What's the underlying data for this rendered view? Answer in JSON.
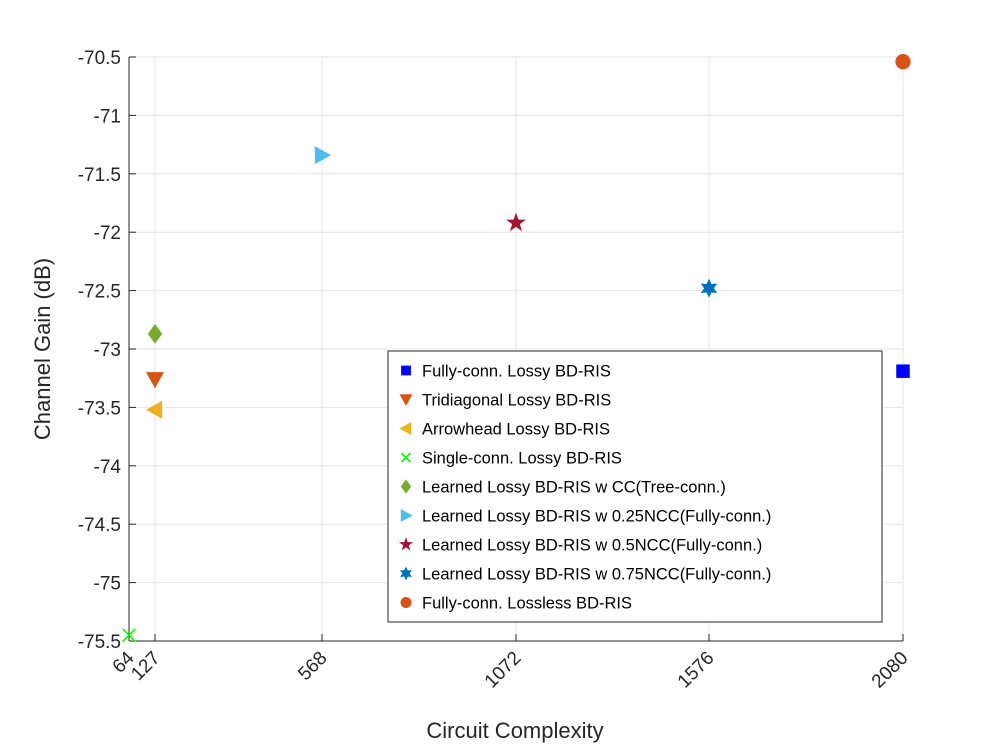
{
  "chart_data": {
    "type": "scatter",
    "title": "",
    "xlabel": "Circuit Complexity",
    "ylabel": "Channel Gain (dB)",
    "xlim": [
      40,
      2080
    ],
    "ylim": [
      -75.5,
      -70.5
    ],
    "grid": true,
    "legend_position": "bottom-right",
    "x_ticks": [
      64,
      127,
      568,
      1072,
      1576,
      2080
    ],
    "x_tick_labels": [
      "64",
      "127",
      "568",
      "1072",
      "1576",
      "2080"
    ],
    "y_ticks": [
      -70.5,
      -71,
      -71.5,
      -72,
      -72.5,
      -73,
      -73.5,
      -74,
      -74.5,
      -75,
      -75.5
    ],
    "y_tick_labels": [
      "-70.5",
      "-71",
      "-71.5",
      "-72",
      "-72.5",
      "-73",
      "-73.5",
      "-74",
      "-74.5",
      "-75",
      "-75.5"
    ],
    "series": [
      {
        "name": "Fully-conn. Lossy BD-RIS",
        "marker": "square",
        "color": "#0000ff",
        "x": 2080,
        "y": -73.19
      },
      {
        "name": "Tridiagonal Lossy BD-RIS",
        "marker": "triangle-down",
        "color": "#d95319",
        "x": 127,
        "y": -73.26
      },
      {
        "name": "Arrowhead Lossy BD-RIS",
        "marker": "triangle-left",
        "color": "#edb120",
        "x": 127,
        "y": -73.52
      },
      {
        "name": "Single-conn. Lossy BD-RIS",
        "marker": "x",
        "color": "#00ff00",
        "x": 64,
        "y": -75.45
      },
      {
        "name": "Learned Lossy BD-RIS w CC(Tree-conn.)",
        "marker": "diamond",
        "color": "#77ac30",
        "x": 127,
        "y": -72.87
      },
      {
        "name": "Learned Lossy BD-RIS w 0.25NCC(Fully-conn.)",
        "marker": "triangle-right",
        "color": "#4dbeee",
        "x": 568,
        "y": -71.34
      },
      {
        "name": "Learned Lossy BD-RIS w 0.5NCC(Fully-conn.)",
        "marker": "pentagram",
        "color": "#a2142f",
        "x": 1072,
        "y": -71.92
      },
      {
        "name": "Learned Lossy BD-RIS w 0.75NCC(Fully-conn.)",
        "marker": "hexagram",
        "color": "#0072bd",
        "x": 1576,
        "y": -72.48
      },
      {
        "name": "Fully-conn. Lossless BD-RIS",
        "marker": "circle",
        "color": "#d95319",
        "x": 2080,
        "y": -70.54
      }
    ]
  }
}
